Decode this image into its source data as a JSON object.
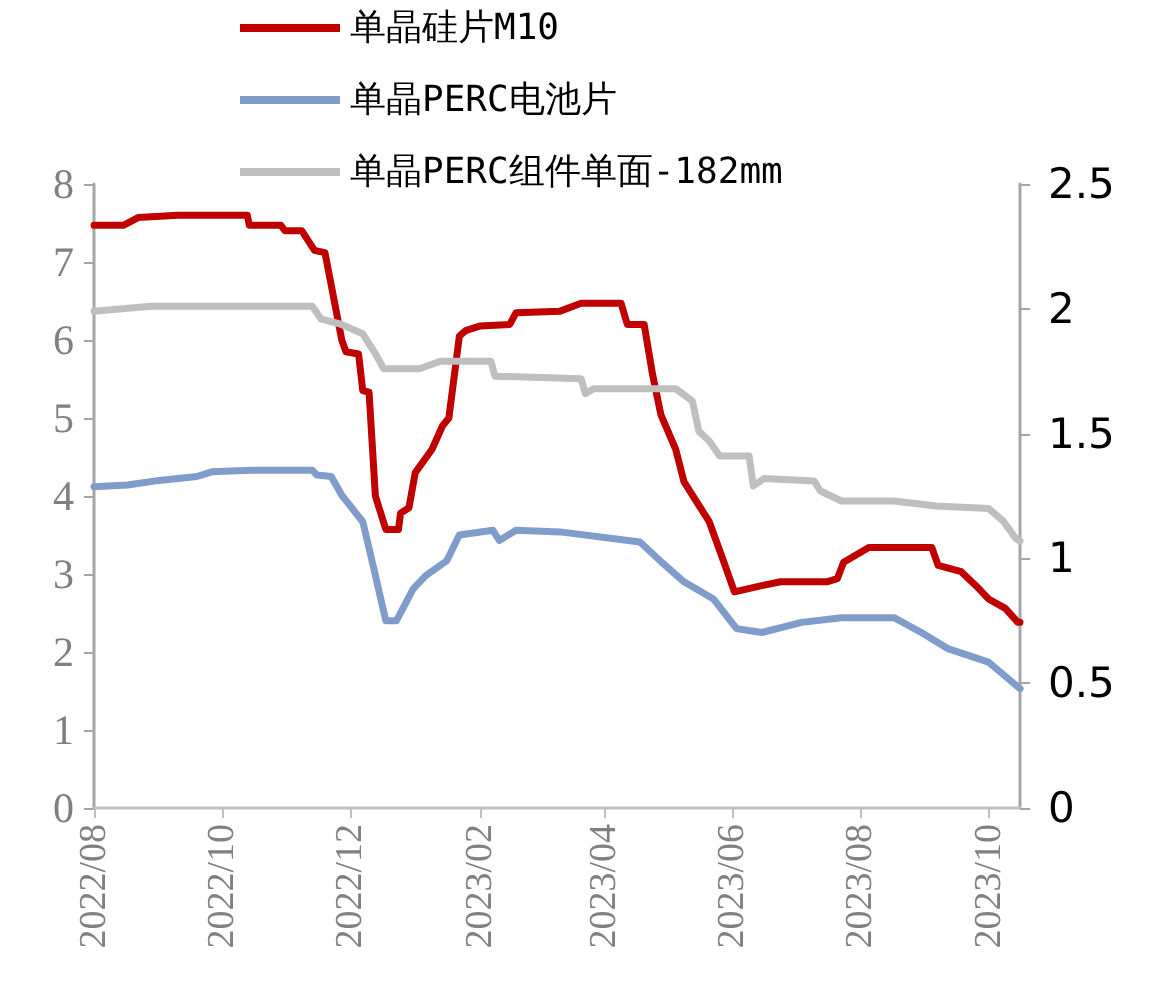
{
  "chart_data": {
    "type": "line",
    "legend": "top",
    "grid": false,
    "marker": "none",
    "line_style": "solid",
    "xlim": [
      "2022-08-01",
      "2023-10-16"
    ],
    "xticks": [
      {
        "value": "2022-08",
        "label": "2022/08"
      },
      {
        "value": "2022-10",
        "label": "2022/10"
      },
      {
        "value": "2022-12",
        "label": "2022/12"
      },
      {
        "value": "2023-02",
        "label": "2023/02"
      },
      {
        "value": "2023-04",
        "label": "2023/04"
      },
      {
        "value": "2023-06",
        "label": "2023/06"
      },
      {
        "value": "2023-08",
        "label": "2023/08"
      },
      {
        "value": "2023-10",
        "label": "2023/10"
      }
    ],
    "ylim": [
      0,
      8
    ],
    "yticks": [
      0,
      1,
      2,
      3,
      4,
      5,
      6,
      7,
      8
    ],
    "y2lim": [
      0,
      2.5
    ],
    "y2ticks": [
      0,
      0.5,
      1,
      1.5,
      2,
      2.5
    ],
    "series": [
      {
        "name": "单晶硅片M10",
        "color": "#c00000",
        "x": [
          "2022-08-01",
          "2022-08-15",
          "2022-08-22",
          "2022-09-10",
          "2022-10-13",
          "2022-10-14",
          "2022-10-29",
          "2022-10-31",
          "2022-11-08",
          "2022-11-14",
          "2022-11-19",
          "2022-11-22",
          "2022-11-27",
          "2022-11-29",
          "2022-12-05",
          "2022-12-07",
          "2022-12-10",
          "2022-12-13",
          "2022-12-18",
          "2022-12-24",
          "2022-12-25",
          "2022-12-29",
          "2023-01-01",
          "2023-01-09",
          "2023-01-14",
          "2023-01-17",
          "2023-01-22",
          "2023-01-25",
          "2023-02-01",
          "2023-02-15",
          "2023-02-18",
          "2023-03-11",
          "2023-03-21",
          "2023-04-09",
          "2023-04-12",
          "2023-04-20",
          "2023-04-24",
          "2023-04-28",
          "2023-05-05",
          "2023-05-09",
          "2023-05-17",
          "2023-05-21",
          "2023-05-28",
          "2023-06-02",
          "2023-06-15",
          "2023-06-24",
          "2023-07-16",
          "2023-07-21",
          "2023-07-24",
          "2023-08-05",
          "2023-09-04",
          "2023-09-07",
          "2023-09-18",
          "2023-09-25",
          "2023-10-01",
          "2023-10-09",
          "2023-10-15",
          "2023-10-16"
        ],
        "values": [
          7.47,
          7.47,
          7.57,
          7.6,
          7.6,
          7.47,
          7.47,
          7.4,
          7.4,
          7.15,
          7.12,
          6.7,
          6.0,
          5.85,
          5.82,
          5.35,
          5.33,
          4.0,
          3.57,
          3.57,
          3.78,
          3.85,
          4.3,
          4.6,
          4.9,
          5.0,
          6.05,
          6.12,
          6.18,
          6.2,
          6.35,
          6.37,
          6.47,
          6.47,
          6.2,
          6.2,
          5.56,
          5.04,
          4.6,
          4.18,
          3.84,
          3.67,
          3.15,
          2.77,
          2.85,
          2.9,
          2.9,
          2.94,
          3.15,
          3.34,
          3.34,
          3.11,
          3.03,
          2.85,
          2.68,
          2.56,
          2.38,
          2.38
        ]
      },
      {
        "name": "单晶PERC电池片",
        "color": "#7f9ccb",
        "x": [
          "2022-08-01",
          "2022-08-17",
          "2022-09-01",
          "2022-09-19",
          "2022-09-26",
          "2022-10-15",
          "2022-11-13",
          "2022-11-15",
          "2022-11-22",
          "2022-11-27",
          "2022-12-02",
          "2022-12-07",
          "2022-12-10",
          "2022-12-18",
          "2022-12-23",
          "2022-12-31",
          "2023-01-06",
          "2023-01-16",
          "2023-01-22",
          "2023-02-07",
          "2023-02-10",
          "2023-02-18",
          "2023-03-11",
          "2023-04-18",
          "2023-04-28",
          "2023-05-09",
          "2023-05-23",
          "2023-06-03",
          "2023-06-15",
          "2023-07-04",
          "2023-07-23",
          "2023-08-17",
          "2023-08-30",
          "2023-09-12",
          "2023-10-01",
          "2023-10-16"
        ],
        "values": [
          4.12,
          4.14,
          4.2,
          4.25,
          4.31,
          4.33,
          4.33,
          4.27,
          4.25,
          4.01,
          3.84,
          3.67,
          3.33,
          2.4,
          2.4,
          2.81,
          2.98,
          3.17,
          3.5,
          3.56,
          3.43,
          3.56,
          3.54,
          3.41,
          3.16,
          2.9,
          2.68,
          2.3,
          2.25,
          2.38,
          2.44,
          2.44,
          2.25,
          2.04,
          1.87,
          1.53
        ]
      },
      {
        "name": "单晶PERC组件单面-182mm",
        "color": "#bfbfbf",
        "axis": "y2",
        "x": [
          "2022-08-01",
          "2022-08-28",
          "2022-11-13",
          "2022-11-17",
          "2022-11-26",
          "2022-12-07",
          "2022-12-13",
          "2022-12-17",
          "2023-01-03",
          "2023-01-13",
          "2023-02-06",
          "2023-02-08",
          "2023-03-21",
          "2023-03-23",
          "2023-03-27",
          "2023-05-05",
          "2023-05-13",
          "2023-05-16",
          "2023-05-21",
          "2023-05-26",
          "2023-06-09",
          "2023-06-11",
          "2023-06-16",
          "2023-07-10",
          "2023-07-13",
          "2023-07-23",
          "2023-08-17",
          "2023-09-06",
          "2023-10-01",
          "2023-10-08",
          "2023-10-14",
          "2023-10-16"
        ],
        "values": [
          1.99,
          2.01,
          2.01,
          1.96,
          1.94,
          1.9,
          1.82,
          1.76,
          1.76,
          1.79,
          1.79,
          1.73,
          1.72,
          1.66,
          1.68,
          1.68,
          1.63,
          1.51,
          1.47,
          1.41,
          1.41,
          1.29,
          1.32,
          1.31,
          1.27,
          1.23,
          1.23,
          1.21,
          1.2,
          1.15,
          1.08,
          1.07
        ]
      }
    ]
  }
}
